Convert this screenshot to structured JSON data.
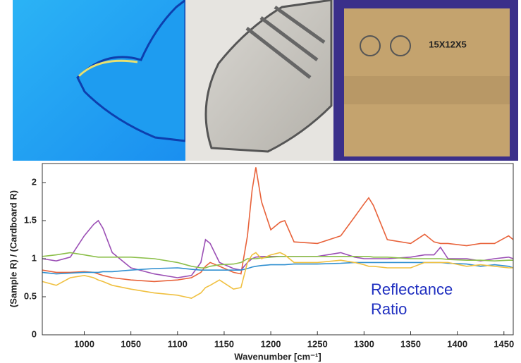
{
  "box_label": "15X12X5",
  "chart_data": {
    "type": "line",
    "x": [
      955,
      970,
      985,
      1000,
      1010,
      1015,
      1020,
      1030,
      1050,
      1075,
      1100,
      1115,
      1125,
      1130,
      1135,
      1145,
      1160,
      1168,
      1175,
      1180,
      1184,
      1190,
      1200,
      1210,
      1215,
      1225,
      1250,
      1275,
      1290,
      1300,
      1305,
      1310,
      1325,
      1350,
      1365,
      1375,
      1382,
      1390,
      1410,
      1425,
      1440,
      1455,
      1460
    ],
    "series": [
      {
        "color": "#e8623a",
        "values": [
          0.85,
          0.82,
          0.82,
          0.83,
          0.82,
          0.8,
          0.78,
          0.75,
          0.72,
          0.7,
          0.72,
          0.75,
          0.82,
          0.9,
          0.95,
          0.9,
          0.82,
          0.8,
          1.3,
          1.9,
          2.2,
          1.75,
          1.38,
          1.48,
          1.5,
          1.22,
          1.2,
          1.3,
          1.55,
          1.72,
          1.8,
          1.7,
          1.25,
          1.2,
          1.32,
          1.22,
          1.2,
          1.2,
          1.17,
          1.2,
          1.2,
          1.3,
          1.25
        ]
      },
      {
        "color": "#9b4fb5",
        "values": [
          1.0,
          0.97,
          1.02,
          1.3,
          1.45,
          1.5,
          1.4,
          1.08,
          0.88,
          0.8,
          0.75,
          0.78,
          0.95,
          1.25,
          1.2,
          0.95,
          0.87,
          0.85,
          0.95,
          1.0,
          1.02,
          1.03,
          1.03,
          1.03,
          1.03,
          1.03,
          1.03,
          1.08,
          1.02,
          1.0,
          1.0,
          1.0,
          1.0,
          1.02,
          1.05,
          1.05,
          1.15,
          1.0,
          1.0,
          0.97,
          1.0,
          1.02,
          1.0
        ]
      },
      {
        "color": "#8cbf4a",
        "values": [
          1.03,
          1.05,
          1.08,
          1.05,
          1.03,
          1.02,
          1.02,
          1.02,
          1.02,
          1.0,
          0.95,
          0.9,
          0.88,
          0.88,
          0.9,
          0.92,
          0.93,
          0.95,
          1.0,
          1.0,
          1.0,
          1.01,
          1.02,
          1.03,
          1.03,
          1.03,
          1.03,
          1.03,
          1.03,
          1.03,
          1.03,
          1.02,
          1.02,
          1.0,
          1.0,
          1.0,
          1.0,
          0.99,
          0.98,
          0.98,
          0.97,
          0.98,
          0.98
        ]
      },
      {
        "color": "#2f8fd0",
        "values": [
          0.82,
          0.8,
          0.81,
          0.82,
          0.82,
          0.82,
          0.83,
          0.83,
          0.85,
          0.87,
          0.88,
          0.86,
          0.85,
          0.85,
          0.85,
          0.85,
          0.85,
          0.85,
          0.87,
          0.89,
          0.9,
          0.91,
          0.92,
          0.92,
          0.92,
          0.93,
          0.93,
          0.94,
          0.95,
          0.95,
          0.95,
          0.95,
          0.95,
          0.95,
          0.95,
          0.95,
          0.95,
          0.94,
          0.93,
          0.9,
          0.92,
          0.9,
          0.88
        ]
      },
      {
        "color": "#f0c040",
        "values": [
          0.7,
          0.65,
          0.75,
          0.78,
          0.75,
          0.72,
          0.7,
          0.65,
          0.6,
          0.55,
          0.52,
          0.48,
          0.55,
          0.62,
          0.65,
          0.72,
          0.6,
          0.62,
          0.95,
          1.05,
          1.08,
          1.0,
          1.05,
          1.08,
          1.05,
          0.95,
          0.95,
          0.98,
          0.95,
          0.92,
          0.9,
          0.9,
          0.88,
          0.88,
          0.95,
          0.95,
          0.95,
          0.95,
          0.9,
          0.92,
          0.9,
          0.88,
          0.88
        ]
      }
    ],
    "xlim": [
      955,
      1460
    ],
    "xticks": [
      1000,
      1050,
      1100,
      1150,
      1200,
      1250,
      1300,
      1350,
      1400,
      1450
    ],
    "ylim": [
      0,
      2.25
    ],
    "yticks": [
      0,
      0.5,
      1,
      1.5,
      2
    ],
    "x_label": "Wavenumber [cm⁻¹]",
    "y_label": "(Sample R) / (Cardboard R)",
    "annotation": [
      "Reflectance",
      "Ratio"
    ],
    "annotation_color": "#1f2fc0"
  }
}
